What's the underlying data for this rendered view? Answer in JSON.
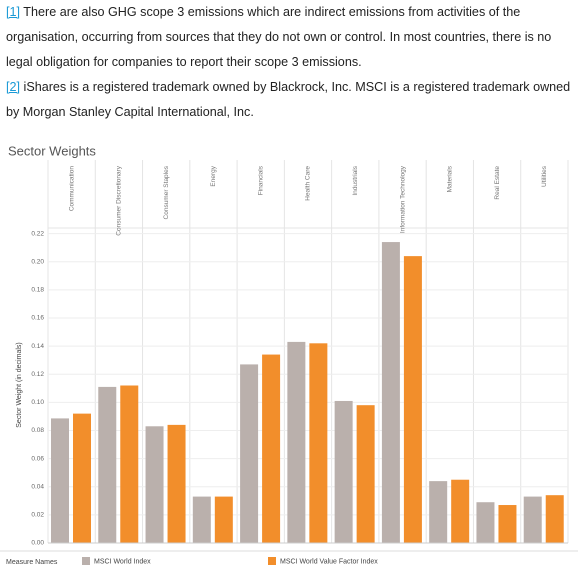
{
  "footnotes": [
    {
      "marker": "[1]",
      "text": "There are also GHG scope 3 emissions which are indirect emissions from activities of the organisation, occurring from sources that they do not own or control. In most countries, there is no legal obligation for companies to report their scope 3 emissions."
    },
    {
      "marker": "[2]",
      "text": "iShares is a registered trademark owned by Blackrock, Inc. MSCI is a registered trademark owned by Morgan Stanley Capital International, Inc."
    }
  ],
  "chart_data": {
    "type": "bar",
    "title": "Sector Weights",
    "categories": [
      "Communication",
      "Consumer Discretionary",
      "Consumer Staples",
      "Energy",
      "Financials",
      "Health Care",
      "Industrials",
      "Information Technology",
      "Materials",
      "Real Estate",
      "Utilities"
    ],
    "series": [
      {
        "name": "MSCI World Index",
        "color": "#bab0ac",
        "values": [
          0.0886,
          0.111,
          0.083,
          0.033,
          0.127,
          0.143,
          0.101,
          0.214,
          0.044,
          0.029,
          0.033
        ]
      },
      {
        "name": "MSCI World Value Factor Index",
        "color": "#f28e2b",
        "values": [
          0.092,
          0.112,
          0.084,
          0.033,
          0.134,
          0.142,
          0.098,
          0.204,
          0.045,
          0.027,
          0.034
        ]
      }
    ],
    "y_label": "Sector Weight (in decimals)",
    "legend_title": "Measure Names",
    "ylim": [
      0,
      0.224
    ],
    "yticks": [
      {
        "value": 0,
        "label": "0.00"
      },
      0.02,
      0.04,
      0.06,
      0.08,
      {
        "value": 0.1,
        "label": "0.10"
      },
      0.12,
      0.14,
      0.16,
      0.18,
      {
        "value": 0.2,
        "label": "0.20"
      },
      0.22
    ],
    "grid": true
  }
}
